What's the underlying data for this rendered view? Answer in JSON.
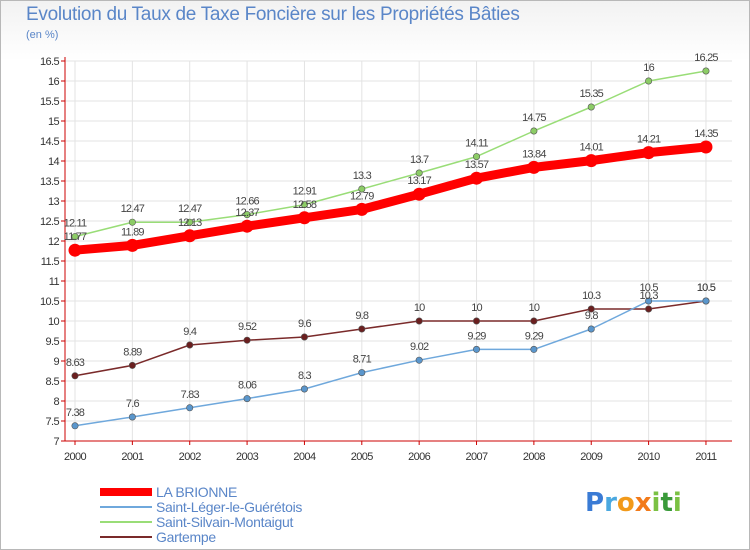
{
  "title": "Evolution du Taux de Taxe Foncière sur les Propriétés Bâties",
  "subtitle": "(en %)",
  "logo": {
    "text": "Proxiti",
    "letters": [
      "P",
      "r",
      "o",
      "x",
      "i",
      "t",
      "i"
    ],
    "colors": [
      "#3a7bd5",
      "#4aa8e0",
      "#f29a1a",
      "#f27a1a",
      "#7ac143",
      "#3a9a3a",
      "#7ac143"
    ]
  },
  "chart_data": {
    "type": "line",
    "title": "Evolution du Taux de Taxe Foncière sur les Propriétés Bâties",
    "ylabel": "(en %)",
    "xlabel": "",
    "ylim": [
      7,
      16.5
    ],
    "yticks": [
      "7",
      "7.5",
      "8",
      "8.5",
      "9",
      "9.5",
      "10",
      "10.5",
      "11",
      "11.5",
      "12",
      "12.5",
      "13",
      "13.5",
      "14",
      "14.5",
      "15",
      "15.5",
      "16",
      "16.5"
    ],
    "x": [
      "2000",
      "2001",
      "2002",
      "2003",
      "2004",
      "2005",
      "2006",
      "2007",
      "2008",
      "2009",
      "2010",
      "2011"
    ],
    "series": [
      {
        "name": "LA BRIONNE",
        "color": "#ff0000",
        "values": [
          11.77,
          11.89,
          12.13,
          12.37,
          12.58,
          12.79,
          13.17,
          13.57,
          13.84,
          14.01,
          14.21,
          14.35
        ],
        "labels": [
          "11.77",
          "11.89",
          "12.13",
          "12.37",
          "12.58",
          "12.79",
          "13.17",
          "13.57",
          "13.84",
          "14.01",
          "14.21",
          "14.35"
        ]
      },
      {
        "name": "Saint-Léger-le-Guérétois",
        "color": "#6fa8dc",
        "values": [
          7.38,
          7.6,
          7.83,
          8.06,
          8.3,
          8.71,
          9.02,
          9.29,
          9.29,
          9.8,
          10.5,
          10.5
        ],
        "labels": [
          "7.38",
          "7.6",
          "7.83",
          "8.06",
          "8.3",
          "8.71",
          "9.02",
          "9.29",
          "9.29",
          "9.8",
          "10.5",
          "10.5"
        ]
      },
      {
        "name": "Saint-Silvain-Montaigut",
        "color": "#99dd77",
        "values": [
          12.11,
          12.47,
          12.47,
          12.66,
          12.91,
          13.3,
          13.7,
          14.11,
          14.75,
          15.35,
          16,
          16.25
        ],
        "labels": [
          "12.11",
          "12.47",
          "12.47",
          "12.66",
          "12.91",
          "13.3",
          "13.7",
          "14.11",
          "14.75",
          "15.35",
          "16",
          "16.25"
        ]
      },
      {
        "name": "Gartempe",
        "color": "#7a2a2a",
        "values": [
          8.63,
          8.89,
          9.4,
          9.52,
          9.6,
          9.8,
          10,
          10,
          10,
          10.3,
          10.3,
          10.5
        ],
        "labels": [
          "8.63",
          "8.89",
          "9.4",
          "9.52",
          "9.6",
          "9.8",
          "10",
          "10",
          "10",
          "10.3",
          "10.3",
          "10.5"
        ]
      }
    ]
  }
}
